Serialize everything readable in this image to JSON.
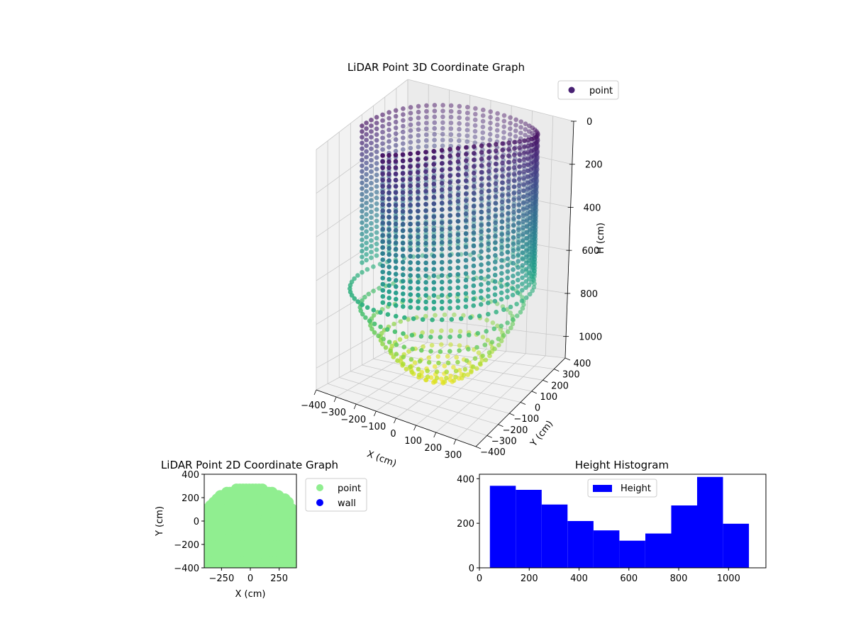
{
  "chart_data": [
    {
      "type": "scatter3d",
      "title": "LiDAR Point 3D Coordinate Graph",
      "xlabel": "X (cm)",
      "ylabel": "Y (cm)",
      "zlabel": "H (cm)",
      "xlim": [
        -400,
        400
      ],
      "ylim": [
        -400,
        400
      ],
      "zlim": [
        1100,
        0
      ],
      "zaxis_inverted": true,
      "x_ticks": [
        "−400",
        "−300",
        "−200",
        "−100",
        "0",
        "100",
        "200",
        "300"
      ],
      "y_ticks": [
        "−400",
        "−300",
        "−200",
        "−100",
        "0",
        "100",
        "200",
        "300",
        "400"
      ],
      "z_ticks": [
        "0",
        "200",
        "400",
        "600",
        "800",
        "1000"
      ],
      "grid": true,
      "colormap": "viridis",
      "legend": {
        "entries": [
          "point"
        ],
        "placement": "top-right",
        "marker_color": "#482173"
      },
      "series": [
        {
          "name": "point",
          "shape": "cylindrical wall with dome-shaped floor",
          "wall_radius": 400,
          "wall_height_range": [
            50,
            650
          ],
          "wall_angle_range_deg": [
            -100,
            180
          ],
          "floor_height_range": [
            650,
            1080
          ]
        }
      ]
    },
    {
      "type": "scatter",
      "title": "LiDAR Point 2D Coordinate Graph",
      "xlabel": "X (cm)",
      "ylabel": "Y (cm)",
      "xlim": [
        -400,
        400
      ],
      "ylim": [
        -400,
        400
      ],
      "x_ticks": [
        "−250",
        "0",
        "250"
      ],
      "y_ticks": [
        "−400",
        "−200",
        "0",
        "200",
        "400"
      ],
      "legend": {
        "entries": [
          "point",
          "wall"
        ],
        "placement": "outside-right"
      },
      "series": [
        {
          "name": "point",
          "color": "#90ee90",
          "region": {
            "x_range": [
              -400,
              400
            ],
            "y_range": [
              -400,
              270
            ]
          }
        },
        {
          "name": "wall",
          "color": "#0000ff",
          "values": []
        }
      ]
    },
    {
      "type": "histogram",
      "title": "Height Histogram",
      "xlim": [
        0,
        1150
      ],
      "ylim": [
        0,
        420
      ],
      "x_ticks": [
        "0",
        "200",
        "400",
        "600",
        "800",
        "1000"
      ],
      "y_ticks": [
        "0",
        "200",
        "400"
      ],
      "legend": {
        "entries": [
          "Height"
        ],
        "placement": "top-center"
      },
      "color": "#0000ff",
      "bins": [
        {
          "x0": 42,
          "x1": 146,
          "count": 368
        },
        {
          "x0": 146,
          "x1": 250,
          "count": 350
        },
        {
          "x0": 250,
          "x1": 354,
          "count": 284
        },
        {
          "x0": 354,
          "x1": 458,
          "count": 210
        },
        {
          "x0": 458,
          "x1": 562,
          "count": 168
        },
        {
          "x0": 562,
          "x1": 666,
          "count": 122
        },
        {
          "x0": 666,
          "x1": 770,
          "count": 154
        },
        {
          "x0": 770,
          "x1": 874,
          "count": 280
        },
        {
          "x0": 874,
          "x1": 978,
          "count": 408
        },
        {
          "x0": 978,
          "x1": 1082,
          "count": 198
        }
      ]
    }
  ]
}
